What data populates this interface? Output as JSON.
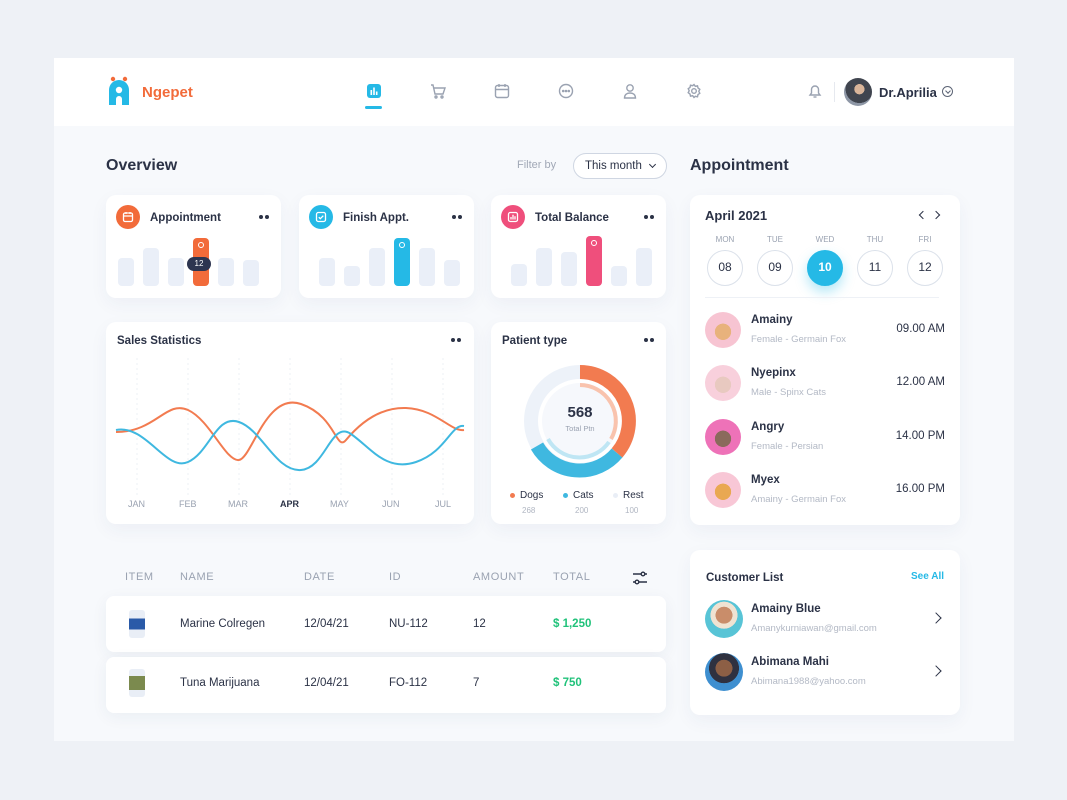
{
  "app": {
    "brand": "Ngepet",
    "brand_color": "#f26b3a",
    "accent": "#25b9e6"
  },
  "nav": {
    "items": [
      {
        "icon": "chart-icon",
        "active": true
      },
      {
        "icon": "cart-icon"
      },
      {
        "icon": "calendar-icon"
      },
      {
        "icon": "chat-icon"
      },
      {
        "icon": "user-icon"
      },
      {
        "icon": "gear-icon"
      }
    ],
    "bell_icon": "bell-icon",
    "user_name": "Dr.Aprilia"
  },
  "overview": {
    "title": "Overview",
    "filter_label": "Filter by",
    "filter_value": "This month",
    "stats": [
      {
        "title": "Appointment",
        "icon": "calendar-icon",
        "color": "#f26b3a",
        "tooltip": "12"
      },
      {
        "title": "Finish Appt.",
        "icon": "check-icon",
        "color": "#25b9e6"
      },
      {
        "title": "Total Balance",
        "icon": "bar-icon",
        "color": "#ef4f7c"
      }
    ]
  },
  "sales": {
    "title": "Sales Statistics",
    "months": [
      "JAN",
      "FEB",
      "MAR",
      "APR",
      "MAY",
      "JUN",
      "JUL"
    ],
    "active_month": "APR",
    "colors": {
      "orange": "#f27b50",
      "blue": "#3fb8e0"
    }
  },
  "patient": {
    "title": "Patient type",
    "total": "568",
    "total_label": "Total Ptn",
    "legend": [
      {
        "label": "Dogs",
        "value": "268",
        "color": "#f27b50"
      },
      {
        "label": "Cats",
        "value": "200",
        "color": "#3fb8e0"
      },
      {
        "label": "Rest",
        "value": "100",
        "color": "#e9eef6"
      }
    ]
  },
  "table": {
    "headers": [
      "ITEM",
      "NAME",
      "DATE",
      "ID",
      "AMOUNT",
      "TOTAL"
    ],
    "filter_icon": "sliders-icon",
    "rows": [
      {
        "name": "Marine Colregen",
        "date": "12/04/21",
        "id": "NU-112",
        "amount": "12",
        "total": "$ 1,250"
      },
      {
        "name": "Tuna Marijuana",
        "date": "12/04/21",
        "id": "FO-112",
        "amount": "7",
        "total": "$ 750"
      }
    ]
  },
  "appointment": {
    "title": "Appointment",
    "month": "April 2021",
    "days": [
      "MON",
      "TUE",
      "WED",
      "THU",
      "FRI"
    ],
    "dates": [
      "08",
      "09",
      "10",
      "11",
      "12"
    ],
    "selected_date": "10",
    "list": [
      {
        "name": "Amainy",
        "sub": "Female - Germain Fox",
        "time": "09.00 AM"
      },
      {
        "name": "Nyepinx",
        "sub": "Male - Spinx Cats",
        "time": "12.00 AM"
      },
      {
        "name": "Angry",
        "sub": "Female - Persian",
        "time": "14.00 PM"
      },
      {
        "name": "Myex",
        "sub": "Amainy - Germain Fox",
        "time": "16.00 PM"
      }
    ]
  },
  "customers": {
    "title": "Customer List",
    "see_all": "See All",
    "list": [
      {
        "name": "Amainy Blue",
        "email": "Amanykurniawan@gmail.com"
      },
      {
        "name": "Abimana Mahi",
        "email": "Abimana1988@yahoo.com"
      }
    ]
  }
}
